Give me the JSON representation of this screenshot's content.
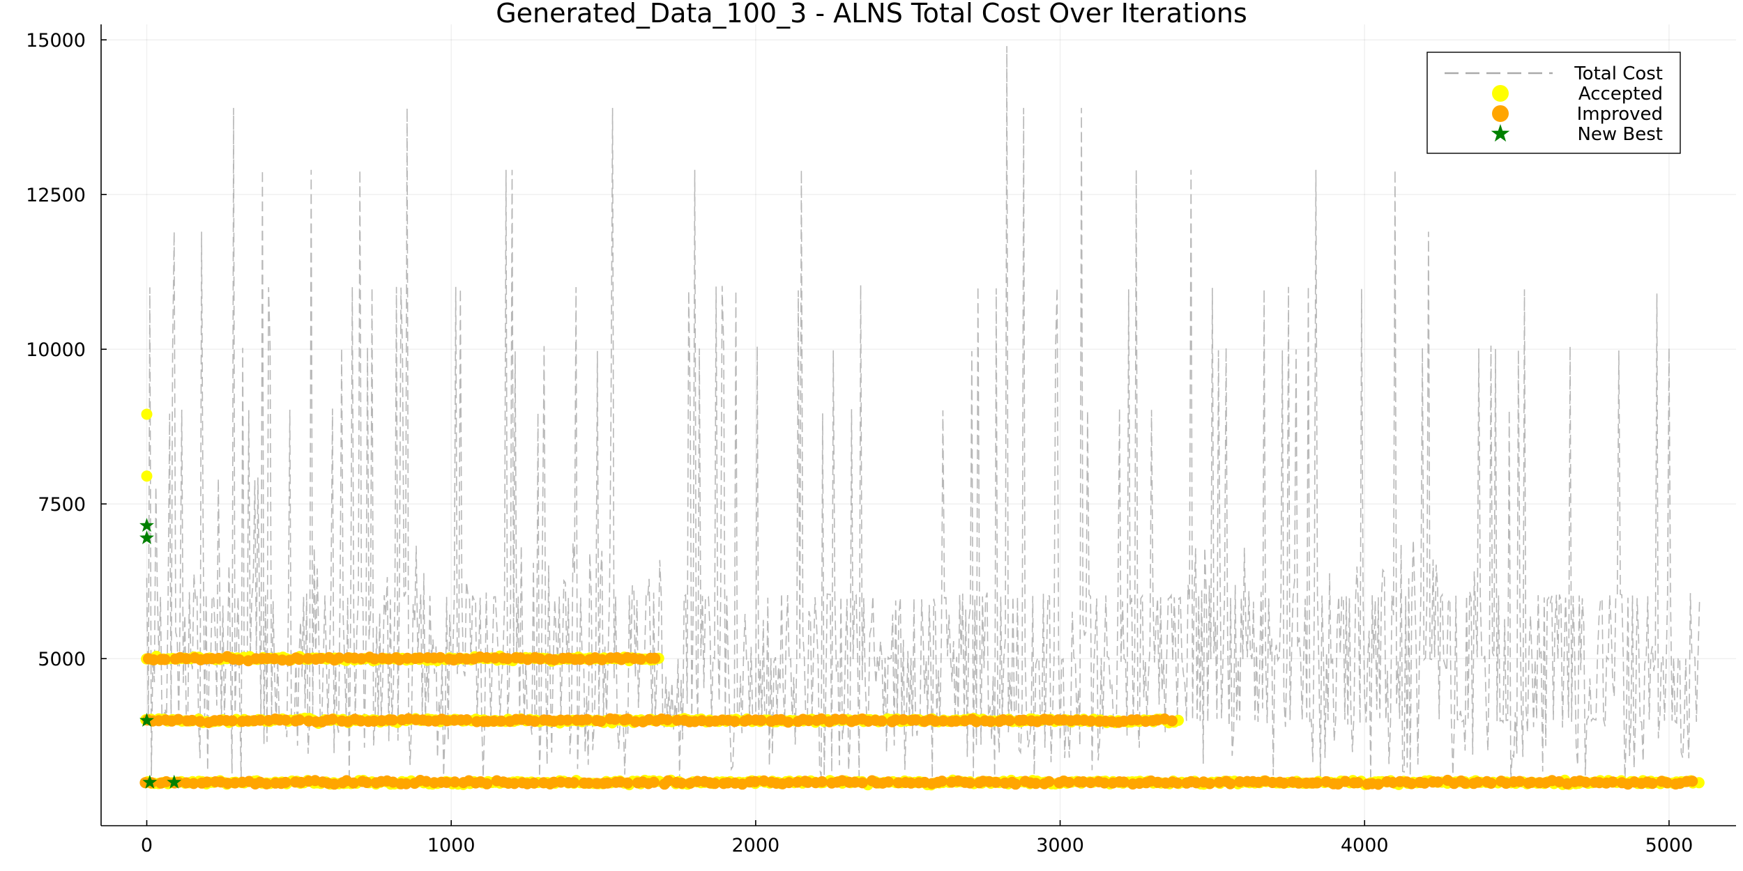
{
  "chart_data": {
    "type": "line",
    "title": "Generated_Data_100_3 - ALNS Total Cost Over Iterations",
    "xlabel": "",
    "ylabel": "",
    "xlim": [
      -150,
      5220
    ],
    "ylim": [
      2300,
      15250
    ],
    "x_ticks": [
      0,
      1000,
      2000,
      3000,
      4000,
      5000
    ],
    "y_ticks": [
      5000,
      7500,
      10000,
      12500,
      15000
    ],
    "grid": true,
    "legend_position": "top-right",
    "series": [
      {
        "name": "Total Cost",
        "kind": "line",
        "style": "dashed",
        "color": "#aaaaaa",
        "x_range": [
          0,
          5100
        ],
        "approx_range": [
          3000,
          14900
        ],
        "peaks": [
          {
            "x": 12,
            "y": 11000
          },
          {
            "x": 90,
            "y": 11900
          },
          {
            "x": 180,
            "y": 11900
          },
          {
            "x": 285,
            "y": 13900
          },
          {
            "x": 380,
            "y": 12900
          },
          {
            "x": 540,
            "y": 12900
          },
          {
            "x": 700,
            "y": 12900
          },
          {
            "x": 855,
            "y": 13900
          },
          {
            "x": 1180,
            "y": 12900
          },
          {
            "x": 1200,
            "y": 12900
          },
          {
            "x": 1530,
            "y": 13900
          },
          {
            "x": 1800,
            "y": 12900
          },
          {
            "x": 2150,
            "y": 12900
          },
          {
            "x": 2825,
            "y": 14900
          },
          {
            "x": 2880,
            "y": 13900
          },
          {
            "x": 3070,
            "y": 13900
          },
          {
            "x": 3250,
            "y": 12900
          },
          {
            "x": 3430,
            "y": 12900
          },
          {
            "x": 3840,
            "y": 12900
          },
          {
            "x": 4100,
            "y": 12900
          },
          {
            "x": 4210,
            "y": 11900
          },
          {
            "x": 4960,
            "y": 10900
          }
        ]
      },
      {
        "name": "Accepted",
        "kind": "scatter",
        "color": "#ffff00",
        "points_isolated": [
          [
            0,
            8950
          ],
          [
            0,
            7950
          ]
        ],
        "bands": [
          {
            "y": 5000,
            "x_range": [
              0,
              1690
            ]
          },
          {
            "y": 4000,
            "x_range": [
              0,
              3400
            ]
          },
          {
            "y": 3000,
            "x_range": [
              0,
              5100
            ]
          }
        ]
      },
      {
        "name": "Improved",
        "kind": "scatter",
        "color": "#ffa500",
        "bands": [
          {
            "y": 5000,
            "x_range": [
              0,
              1680
            ]
          },
          {
            "y": 4000,
            "x_range": [
              0,
              3380
            ]
          },
          {
            "y": 3000,
            "x_range": [
              0,
              5100
            ]
          }
        ]
      },
      {
        "name": "New Best",
        "kind": "scatter",
        "marker": "star",
        "color": "#008000",
        "points": [
          [
            0,
            7150
          ],
          [
            0,
            6950
          ],
          [
            0,
            4000
          ],
          [
            10,
            3000
          ],
          [
            90,
            3000
          ]
        ]
      }
    ]
  }
}
